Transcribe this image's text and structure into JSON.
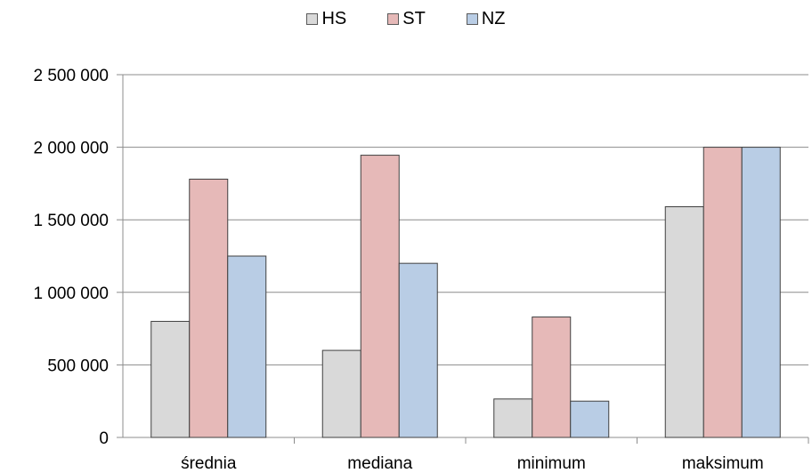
{
  "chart_data": {
    "type": "bar",
    "categories": [
      "średnia",
      "mediana",
      "minimum",
      "maksimum"
    ],
    "series": [
      {
        "name": "HS",
        "color": "#d9d9d9",
        "values": [
          800000,
          600000,
          265000,
          1590000
        ]
      },
      {
        "name": "ST",
        "color": "#e6b9b8",
        "values": [
          1780000,
          1945000,
          830000,
          2000000
        ]
      },
      {
        "name": "NZ",
        "color": "#b9cde5",
        "values": [
          1250000,
          1200000,
          250000,
          2000000
        ]
      }
    ],
    "ylim": [
      0,
      2500000
    ],
    "yticks": [
      0,
      500000,
      1000000,
      1500000,
      2000000,
      2500000
    ],
    "ytick_labels": [
      "0",
      "500 000",
      "1 000 000",
      "1 500 000",
      "2 000 000",
      "2 500 000"
    ],
    "grid": true,
    "legend_position": "top-center",
    "title": "",
    "xlabel": "",
    "ylabel": ""
  }
}
